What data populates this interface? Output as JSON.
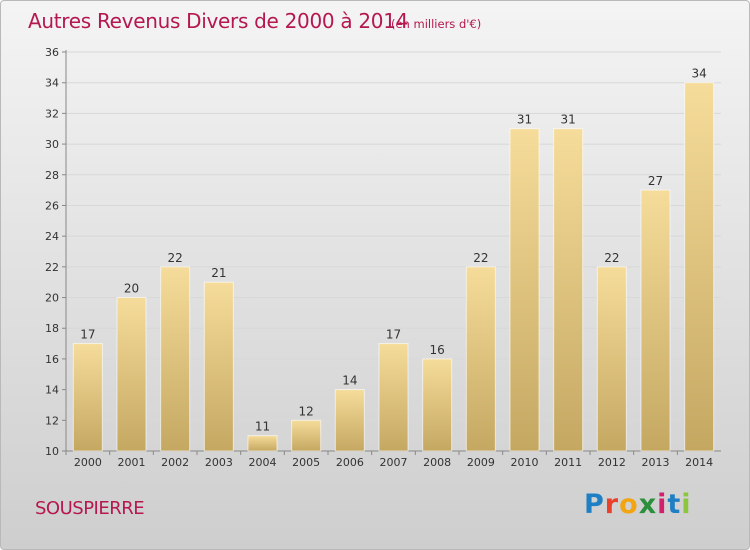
{
  "header": {
    "title": "Autres Revenus Divers de 2000 à 2014",
    "subtitle": "(en milliers d'€)"
  },
  "footer": {
    "commune": "SOUSPIERRE",
    "logo_text": "Proxiti",
    "logo_colors": [
      "#1f7fc4",
      "#e8402a",
      "#f2a511",
      "#2c8f3c",
      "#d21f6e",
      "#1f7fc4",
      "#8cc63f"
    ]
  },
  "colors": {
    "title": "#b5174f",
    "bar_light": "#f6dc9a",
    "bar_dark": "#c4a862",
    "grid": "#d8d8d8"
  },
  "chart_data": {
    "type": "bar",
    "title": "Autres Revenus Divers de 2000 à 2014",
    "subtitle": "(en milliers d'€)",
    "categories": [
      "2000",
      "2001",
      "2002",
      "2003",
      "2004",
      "2005",
      "2006",
      "2007",
      "2008",
      "2009",
      "2010",
      "2011",
      "2012",
      "2013",
      "2014"
    ],
    "values": [
      17,
      20,
      22,
      21,
      11,
      12,
      14,
      17,
      16,
      22,
      31,
      31,
      22,
      27,
      34
    ],
    "ylim": [
      10,
      36
    ],
    "yticks": [
      10,
      12,
      14,
      16,
      18,
      20,
      22,
      24,
      26,
      28,
      30,
      32,
      34,
      36
    ],
    "grid": true,
    "xlabel": "",
    "ylabel": ""
  }
}
